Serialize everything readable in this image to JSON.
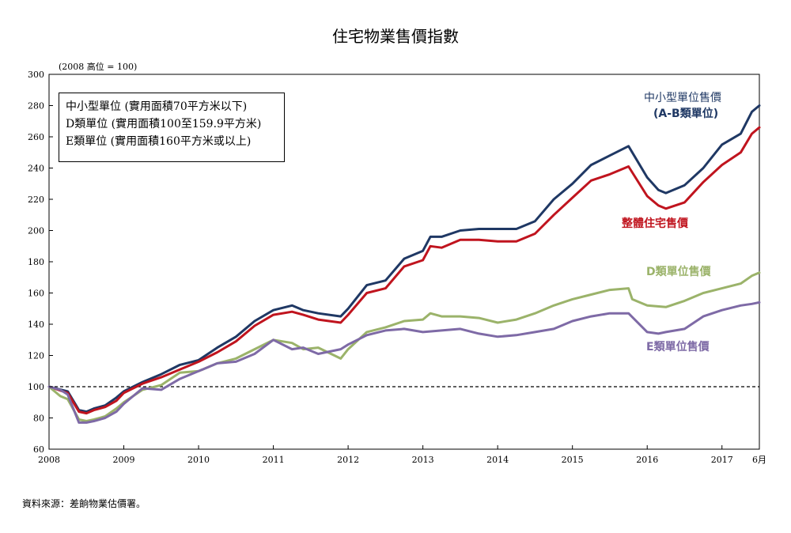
{
  "chart_data": {
    "type": "line",
    "title": "住宅物業售價指數",
    "unit_note": "(2008 高位 = 100)",
    "ylim": [
      60,
      300
    ],
    "y_ticks": [
      60,
      80,
      100,
      120,
      140,
      160,
      180,
      200,
      220,
      240,
      260,
      280,
      300
    ],
    "xlim": [
      2008.0,
      2017.5
    ],
    "x_ticks": [
      {
        "value": 2008,
        "label": "2008"
      },
      {
        "value": 2009,
        "label": "2009"
      },
      {
        "value": 2010,
        "label": "2010"
      },
      {
        "value": 2011,
        "label": "2011"
      },
      {
        "value": 2012,
        "label": "2012"
      },
      {
        "value": 2013,
        "label": "2013"
      },
      {
        "value": 2014,
        "label": "2014"
      },
      {
        "value": 2015,
        "label": "2015"
      },
      {
        "value": 2016,
        "label": "2016"
      },
      {
        "value": 2017,
        "label": "2017"
      }
    ],
    "x_end_label": "6月",
    "reference_line": 100,
    "legend_box": [
      "中小型單位 (實用面積70平方米以下)",
      "D類單位 (實用面積100至159.9平方米)",
      "E類單位 (實用面積160平方米或以上)"
    ],
    "series": [
      {
        "name": "中小型單位售價 (A-B類單位)",
        "label_lines": [
          "中小型單位售價",
          "(A-B類單位)"
        ],
        "color": "#1f3864",
        "points": [
          [
            2008.0,
            100
          ],
          [
            2008.25,
            97
          ],
          [
            2008.4,
            85
          ],
          [
            2008.5,
            84
          ],
          [
            2008.6,
            86
          ],
          [
            2008.75,
            88
          ],
          [
            2008.9,
            93
          ],
          [
            2009.0,
            97
          ],
          [
            2009.25,
            103
          ],
          [
            2009.5,
            108
          ],
          [
            2009.75,
            114
          ],
          [
            2010.0,
            117
          ],
          [
            2010.25,
            125
          ],
          [
            2010.5,
            132
          ],
          [
            2010.75,
            142
          ],
          [
            2011.0,
            149
          ],
          [
            2011.25,
            152
          ],
          [
            2011.4,
            149
          ],
          [
            2011.6,
            147
          ],
          [
            2011.9,
            145
          ],
          [
            2012.0,
            150
          ],
          [
            2012.25,
            165
          ],
          [
            2012.5,
            168
          ],
          [
            2012.75,
            182
          ],
          [
            2013.0,
            187
          ],
          [
            2013.1,
            196
          ],
          [
            2013.25,
            196
          ],
          [
            2013.5,
            200
          ],
          [
            2013.75,
            201
          ],
          [
            2014.0,
            201
          ],
          [
            2014.25,
            201
          ],
          [
            2014.5,
            206
          ],
          [
            2014.75,
            220
          ],
          [
            2015.0,
            230
          ],
          [
            2015.25,
            242
          ],
          [
            2015.5,
            248
          ],
          [
            2015.75,
            254
          ],
          [
            2016.0,
            234
          ],
          [
            2016.15,
            226
          ],
          [
            2016.25,
            224
          ],
          [
            2016.5,
            229
          ],
          [
            2016.75,
            240
          ],
          [
            2017.0,
            255
          ],
          [
            2017.25,
            262
          ],
          [
            2017.4,
            276
          ],
          [
            2017.5,
            280
          ]
        ]
      },
      {
        "name": "整體住宅售價",
        "label_lines": [
          "整體住宅售價"
        ],
        "color": "#c0141e",
        "points": [
          [
            2008.0,
            100
          ],
          [
            2008.25,
            96
          ],
          [
            2008.4,
            84
          ],
          [
            2008.5,
            83
          ],
          [
            2008.6,
            85
          ],
          [
            2008.75,
            87
          ],
          [
            2008.9,
            91
          ],
          [
            2009.0,
            96
          ],
          [
            2009.25,
            102
          ],
          [
            2009.5,
            106
          ],
          [
            2009.75,
            111
          ],
          [
            2010.0,
            116
          ],
          [
            2010.25,
            122
          ],
          [
            2010.5,
            129
          ],
          [
            2010.75,
            139
          ],
          [
            2011.0,
            146
          ],
          [
            2011.25,
            148
          ],
          [
            2011.4,
            146
          ],
          [
            2011.6,
            143
          ],
          [
            2011.9,
            141
          ],
          [
            2012.0,
            146
          ],
          [
            2012.25,
            160
          ],
          [
            2012.5,
            163
          ],
          [
            2012.75,
            177
          ],
          [
            2013.0,
            181
          ],
          [
            2013.1,
            190
          ],
          [
            2013.25,
            189
          ],
          [
            2013.5,
            194
          ],
          [
            2013.75,
            194
          ],
          [
            2014.0,
            193
          ],
          [
            2014.25,
            193
          ],
          [
            2014.5,
            198
          ],
          [
            2014.75,
            210
          ],
          [
            2015.0,
            221
          ],
          [
            2015.25,
            232
          ],
          [
            2015.5,
            236
          ],
          [
            2015.75,
            241
          ],
          [
            2016.0,
            222
          ],
          [
            2016.15,
            216
          ],
          [
            2016.25,
            214
          ],
          [
            2016.5,
            218
          ],
          [
            2016.75,
            231
          ],
          [
            2017.0,
            242
          ],
          [
            2017.25,
            250
          ],
          [
            2017.4,
            262
          ],
          [
            2017.5,
            266
          ]
        ]
      },
      {
        "name": "D類單位售價",
        "label_lines": [
          "D類單位售價"
        ],
        "color": "#9bb36a",
        "points": [
          [
            2008.0,
            100
          ],
          [
            2008.15,
            94
          ],
          [
            2008.25,
            92
          ],
          [
            2008.4,
            79
          ],
          [
            2008.5,
            78
          ],
          [
            2008.6,
            79
          ],
          [
            2008.75,
            81
          ],
          [
            2008.9,
            86
          ],
          [
            2009.0,
            90
          ],
          [
            2009.25,
            98
          ],
          [
            2009.5,
            101
          ],
          [
            2009.75,
            109
          ],
          [
            2010.0,
            110
          ],
          [
            2010.25,
            115
          ],
          [
            2010.5,
            118
          ],
          [
            2010.75,
            124
          ],
          [
            2011.0,
            130
          ],
          [
            2011.25,
            128
          ],
          [
            2011.4,
            124
          ],
          [
            2011.6,
            125
          ],
          [
            2011.9,
            118
          ],
          [
            2012.0,
            124
          ],
          [
            2012.25,
            135
          ],
          [
            2012.5,
            138
          ],
          [
            2012.75,
            142
          ],
          [
            2013.0,
            143
          ],
          [
            2013.1,
            147
          ],
          [
            2013.25,
            145
          ],
          [
            2013.5,
            145
          ],
          [
            2013.75,
            144
          ],
          [
            2014.0,
            141
          ],
          [
            2014.25,
            143
          ],
          [
            2014.5,
            147
          ],
          [
            2014.75,
            152
          ],
          [
            2015.0,
            156
          ],
          [
            2015.25,
            159
          ],
          [
            2015.5,
            162
          ],
          [
            2015.75,
            163
          ],
          [
            2015.8,
            156
          ],
          [
            2016.0,
            152
          ],
          [
            2016.25,
            151
          ],
          [
            2016.5,
            155
          ],
          [
            2016.75,
            160
          ],
          [
            2017.0,
            163
          ],
          [
            2017.25,
            166
          ],
          [
            2017.4,
            171
          ],
          [
            2017.5,
            173
          ]
        ]
      },
      {
        "name": "E類單位售價",
        "label_lines": [
          "E類單位售價"
        ],
        "color": "#7e6aa6",
        "points": [
          [
            2008.0,
            100
          ],
          [
            2008.15,
            98
          ],
          [
            2008.25,
            95
          ],
          [
            2008.4,
            77
          ],
          [
            2008.5,
            77
          ],
          [
            2008.6,
            78
          ],
          [
            2008.75,
            80
          ],
          [
            2008.9,
            84
          ],
          [
            2009.0,
            89
          ],
          [
            2009.25,
            99
          ],
          [
            2009.5,
            98
          ],
          [
            2009.75,
            105
          ],
          [
            2010.0,
            110
          ],
          [
            2010.25,
            115
          ],
          [
            2010.5,
            116
          ],
          [
            2010.75,
            121
          ],
          [
            2011.0,
            130
          ],
          [
            2011.25,
            124
          ],
          [
            2011.4,
            125
          ],
          [
            2011.6,
            121
          ],
          [
            2011.9,
            124
          ],
          [
            2012.0,
            127
          ],
          [
            2012.25,
            133
          ],
          [
            2012.5,
            136
          ],
          [
            2012.75,
            137
          ],
          [
            2013.0,
            135
          ],
          [
            2013.25,
            136
          ],
          [
            2013.5,
            137
          ],
          [
            2013.75,
            134
          ],
          [
            2014.0,
            132
          ],
          [
            2014.25,
            133
          ],
          [
            2014.5,
            135
          ],
          [
            2014.75,
            137
          ],
          [
            2015.0,
            142
          ],
          [
            2015.25,
            145
          ],
          [
            2015.5,
            147
          ],
          [
            2015.75,
            147
          ],
          [
            2016.0,
            135
          ],
          [
            2016.15,
            134
          ],
          [
            2016.25,
            135
          ],
          [
            2016.5,
            137
          ],
          [
            2016.75,
            145
          ],
          [
            2017.0,
            149
          ],
          [
            2017.25,
            152
          ],
          [
            2017.4,
            153
          ],
          [
            2017.5,
            154
          ]
        ]
      }
    ]
  },
  "source_note": "資料來源：差餉物業估價署。"
}
